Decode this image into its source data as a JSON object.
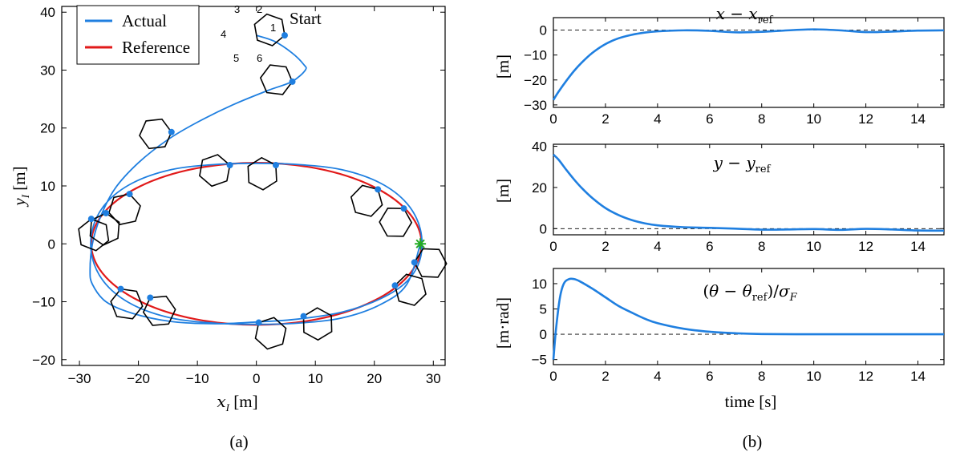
{
  "panel_a": {
    "caption": "(a)",
    "start_label": "Start",
    "xlabel": "x_I [m]",
    "ylabel": "y_I [m]",
    "vertex_labels": [
      "1",
      "2",
      "3",
      "4",
      "5",
      "6"
    ],
    "end_marker": "*"
  },
  "panel_b": {
    "caption": "(b)",
    "xlabel": "time [s]"
  },
  "colors": {
    "actual": "#1f7fe0",
    "reference": "#e11a1a",
    "marker": "#1f7fe0",
    "end": "#22aa22",
    "robot": "#000000"
  },
  "chart_data": [
    {
      "type": "line",
      "xlabel": "x_I [m]",
      "ylabel": "y_I [m]",
      "xlim": [
        -33,
        32
      ],
      "ylim": [
        -21,
        41
      ],
      "xticks": [
        -30,
        -20,
        -10,
        0,
        10,
        20,
        30
      ],
      "yticks": [
        -20,
        -10,
        0,
        10,
        20,
        30,
        40
      ],
      "legend": {
        "placement": "top-left",
        "entries": [
          "Actual",
          "Reference"
        ]
      },
      "series": [
        {
          "name": "Actual",
          "color": "#1f7fe0",
          "x": [
            0,
            3,
            6,
            8,
            8.3,
            6,
            2,
            -4,
            -10,
            -15,
            -20,
            -24,
            -26.5,
            -27.8,
            -28.2,
            -27.8,
            -25.5,
            -21,
            -14.5,
            -7,
            0,
            7,
            14.5,
            21,
            25.5,
            27.8,
            27.8,
            25.5,
            21,
            14.5,
            7,
            0,
            -7,
            -14.5,
            -21,
            -25.5,
            -27.8,
            -27.8,
            -25.5,
            -21,
            -14.5,
            -7,
            0,
            7,
            14.5,
            21,
            25.5,
            27.8
          ],
          "y": [
            36,
            35,
            33,
            31,
            30,
            28,
            26.5,
            24,
            21,
            18,
            14,
            9.5,
            4.5,
            0,
            -4.5,
            -7,
            -10,
            -12,
            -13.4,
            -13.8,
            -13.5,
            -13,
            -11.8,
            -9.5,
            -6.5,
            -2.5,
            2.5,
            7,
            10.5,
            12.8,
            13.7,
            13.9,
            13.7,
            12.8,
            10.5,
            7,
            2.5,
            -2.5,
            -7,
            -10.5,
            -12.8,
            -13.7,
            -13.9,
            -13.7,
            -12.8,
            -10.5,
            -7,
            0
          ]
        },
        {
          "name": "Reference",
          "color": "#e11a1a",
          "ellipse_center": [
            0,
            0
          ],
          "ellipse_radii": [
            28,
            14
          ]
        }
      ],
      "robot_snapshots": [
        [
          4.8,
          36
        ],
        [
          6.1,
          28
        ],
        [
          -14.4,
          19.3
        ],
        [
          -4.5,
          13.6
        ],
        [
          3.3,
          13.6
        ],
        [
          20.6,
          9.4
        ],
        [
          25,
          6.1
        ],
        [
          -21.5,
          8.6
        ],
        [
          -25.5,
          5.3
        ],
        [
          -28,
          4.3
        ],
        [
          -23,
          -7.8
        ],
        [
          -18,
          -9.3
        ],
        [
          0.4,
          -13.6
        ],
        [
          8,
          -12.5
        ],
        [
          23.5,
          -7.2
        ],
        [
          26.8,
          -3.2
        ]
      ],
      "end_point": [
        27.8,
        0
      ]
    },
    {
      "type": "line",
      "title": "x - x_ref",
      "ylabel": "[m]",
      "xlim": [
        0,
        15
      ],
      "ylim": [
        -31,
        5
      ],
      "xticks": [
        0,
        2,
        4,
        6,
        8,
        10,
        12,
        14
      ],
      "yticks": [
        0,
        -10,
        -20,
        -30
      ],
      "series": [
        {
          "name": "x - x_ref",
          "color": "#1f7fe0",
          "x": [
            0,
            0.2,
            0.5,
            0.8,
            1.1,
            1.5,
            2,
            2.5,
            3,
            3.5,
            4,
            5,
            6,
            7,
            8,
            9,
            10,
            11,
            12,
            13,
            14,
            15
          ],
          "y": [
            -28,
            -24.7,
            -20.3,
            -16.3,
            -12.9,
            -9.1,
            -5.6,
            -3.3,
            -1.9,
            -1,
            -0.5,
            -0.1,
            -0.3,
            -0.9,
            -0.7,
            -0.1,
            0.3,
            -0.1,
            -0.8,
            -0.6,
            -0.2,
            -0.1
          ]
        }
      ]
    },
    {
      "type": "line",
      "title": "y - y_ref",
      "ylabel": "[m]",
      "xlim": [
        0,
        15
      ],
      "ylim": [
        -3,
        41
      ],
      "xticks": [
        0,
        2,
        4,
        6,
        8,
        10,
        12,
        14
      ],
      "yticks": [
        0,
        20,
        40
      ],
      "series": [
        {
          "name": "y - y_ref",
          "color": "#1f7fe0",
          "x": [
            0,
            0.2,
            0.5,
            0.8,
            1.1,
            1.5,
            2,
            2.5,
            3,
            3.5,
            4,
            5,
            6,
            7,
            8,
            9,
            10,
            11,
            12,
            13,
            14,
            15
          ],
          "y": [
            36,
            33.5,
            28.5,
            23.8,
            19.6,
            14.8,
            10,
            6.6,
            4.2,
            2.6,
            1.6,
            0.7,
            0.4,
            0,
            -0.5,
            -0.4,
            -0.2,
            -0.6,
            -0.1,
            -0.4,
            -0.9,
            -1
          ]
        }
      ]
    },
    {
      "type": "line",
      "title": "(θ - θ_ref) / σ_F",
      "ylabel": "[m·rad]",
      "xlim": [
        0,
        15
      ],
      "ylim": [
        -6,
        13
      ],
      "xticks": [
        0,
        2,
        4,
        6,
        8,
        10,
        12,
        14
      ],
      "yticks": [
        10,
        5,
        0,
        -5
      ],
      "series": [
        {
          "name": "(θ - θ_ref)/σ_F",
          "color": "#1f7fe0",
          "x": [
            0,
            0.1,
            0.25,
            0.4,
            0.6,
            0.8,
            1,
            1.5,
            2,
            2.5,
            3,
            3.5,
            4,
            5,
            6,
            7,
            8,
            10,
            12,
            14,
            15
          ],
          "y": [
            -5,
            1,
            7.2,
            10,
            10.9,
            10.9,
            10.5,
            9,
            7.3,
            5.6,
            4.3,
            3.1,
            2.2,
            1.1,
            0.5,
            0.2,
            0.05,
            0,
            0,
            0,
            0
          ]
        }
      ]
    }
  ]
}
